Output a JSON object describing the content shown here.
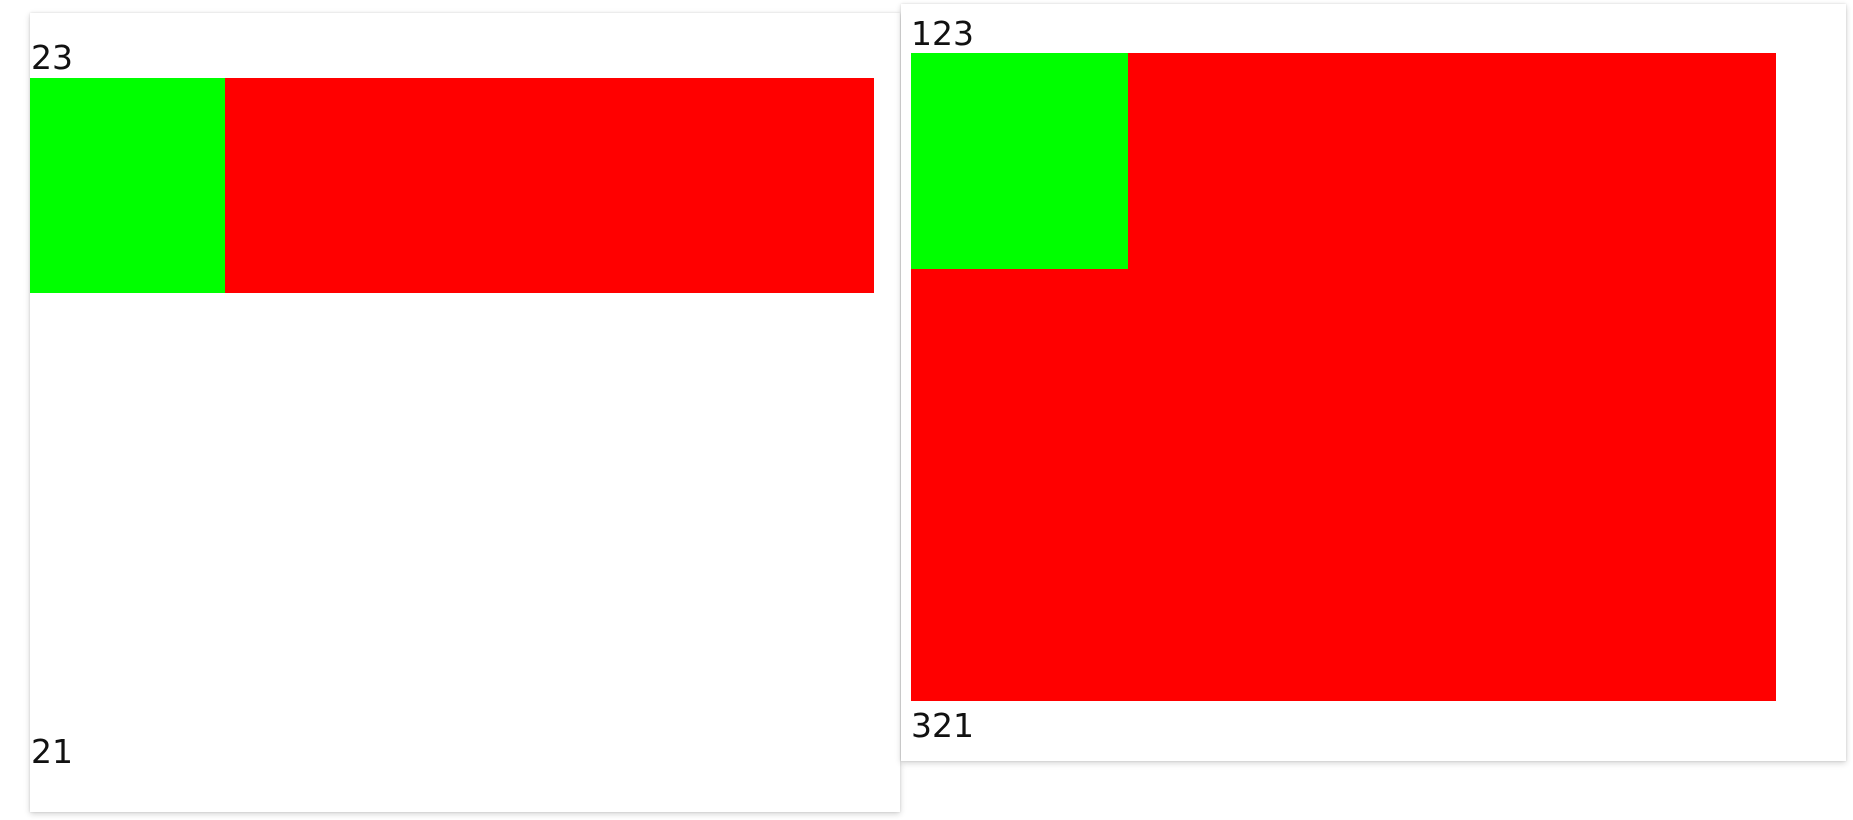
{
  "panels": {
    "left": {
      "top_label": "23",
      "bottom_label": "21"
    },
    "right": {
      "top_label": "123",
      "bottom_label": "321"
    }
  },
  "colors": {
    "background": "#ffffff",
    "green_block": "#00ff00",
    "red_block": "#ff0000",
    "text": "#111111"
  }
}
